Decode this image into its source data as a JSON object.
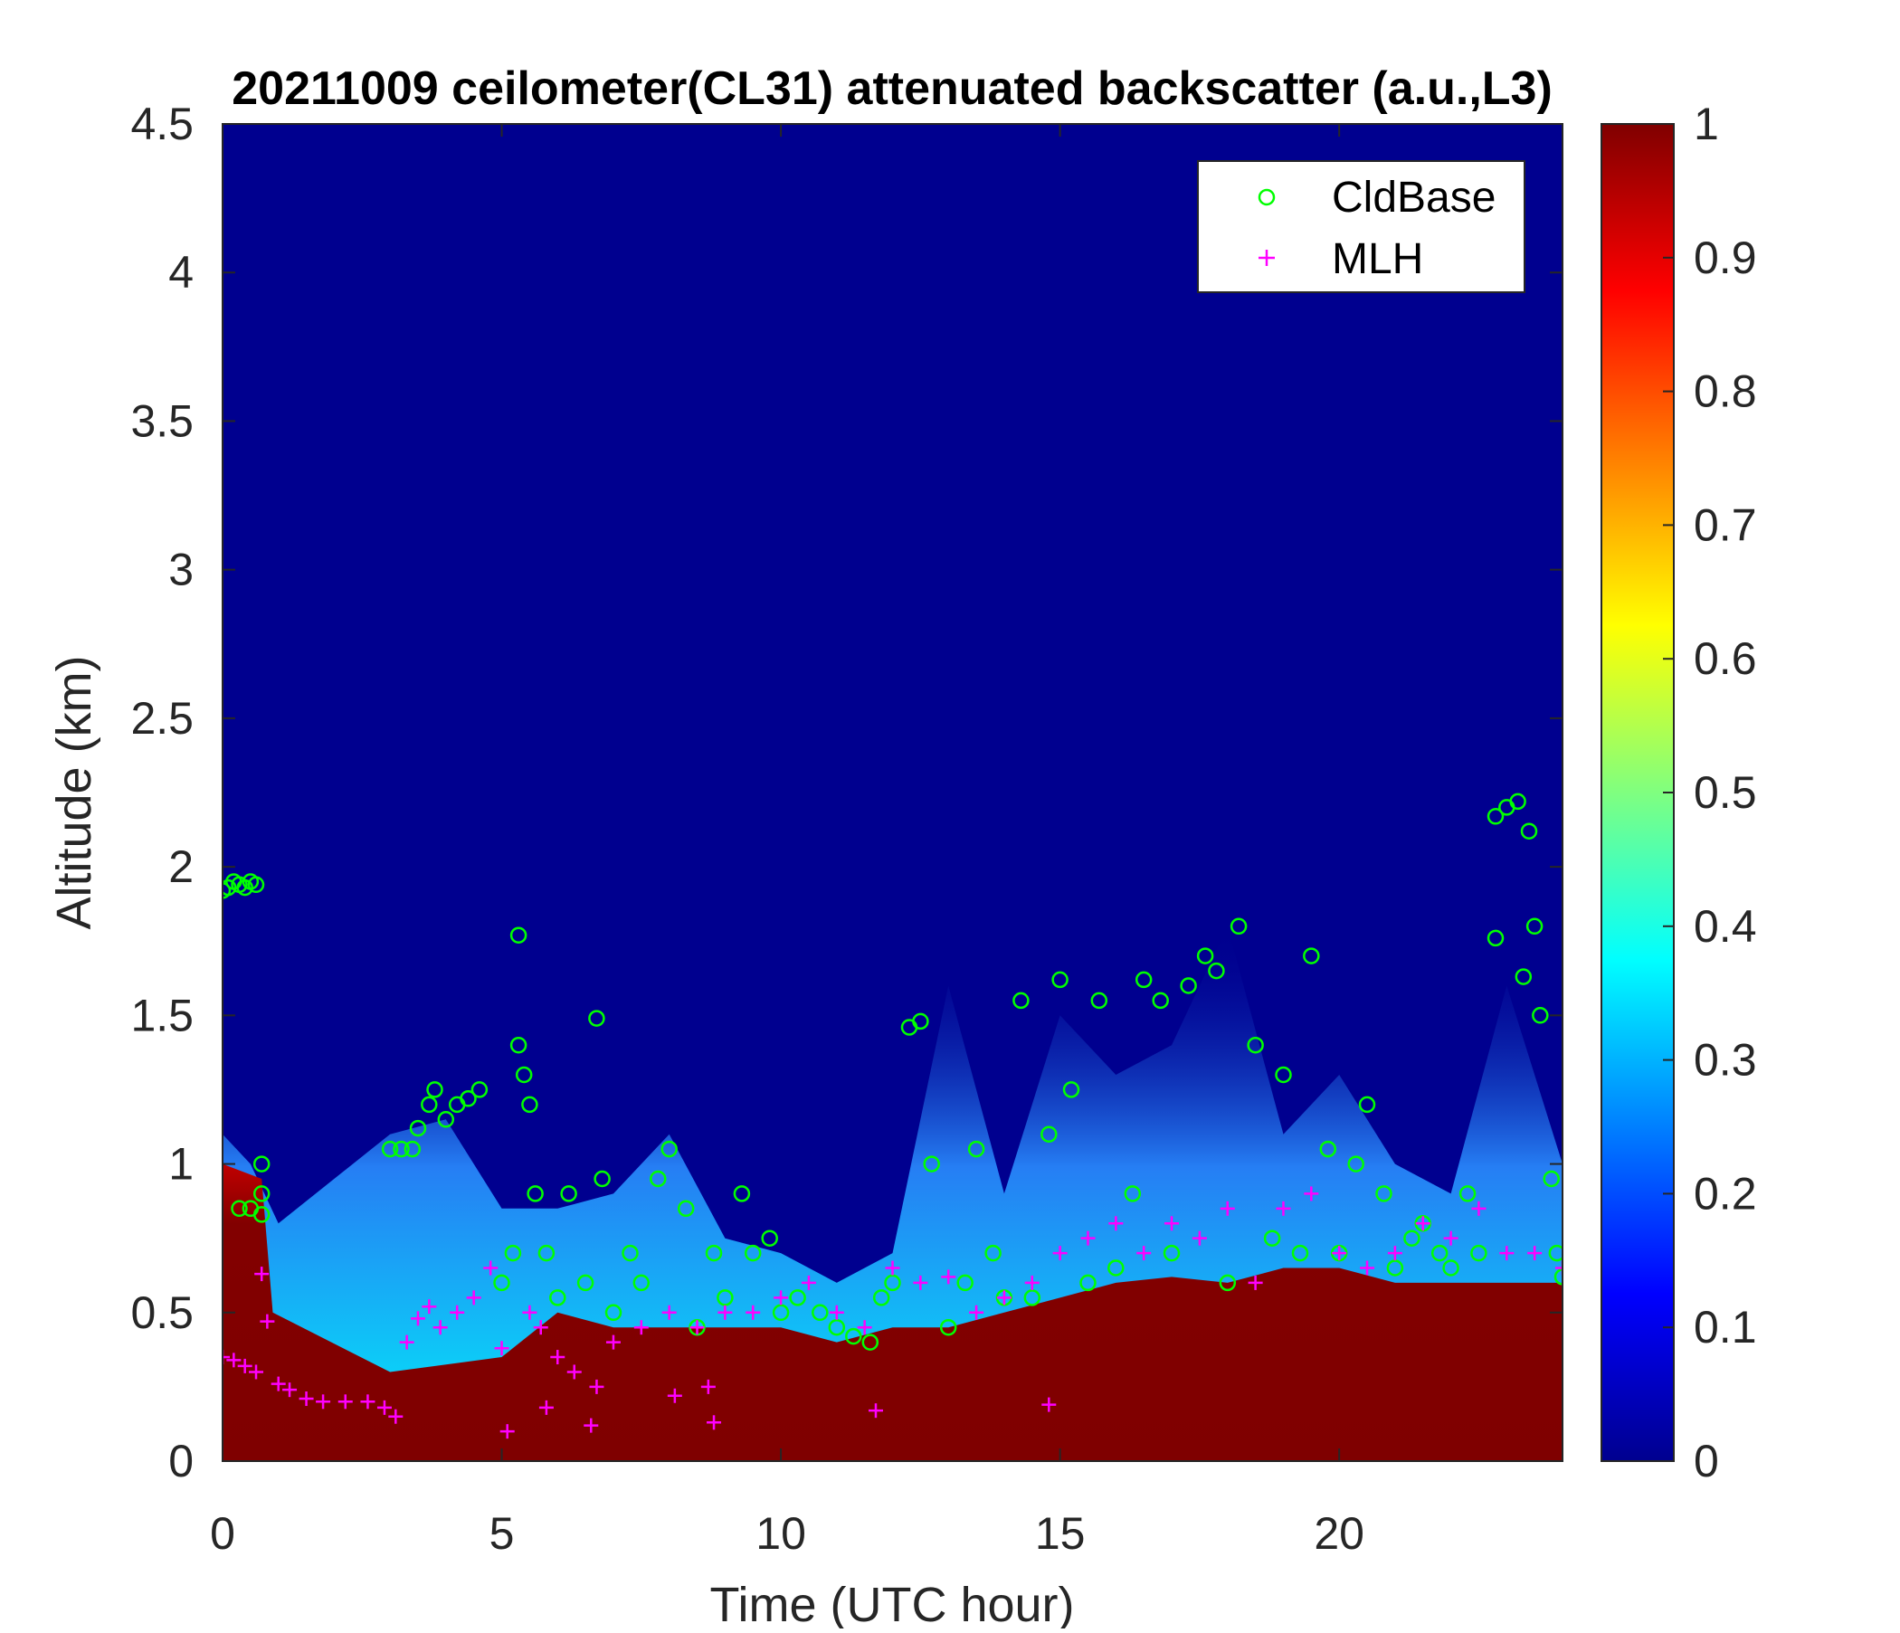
{
  "chart_data": {
    "type": "heatmap",
    "title": "20211009 ceilometer(CL31) attenuated backscatter (a.u.,L3)",
    "xlabel": "Time (UTC hour)",
    "ylabel": "Altitude (km)",
    "xlim": [
      0,
      24
    ],
    "ylim": [
      0,
      4.5
    ],
    "xticks": [
      0,
      5,
      10,
      15,
      20
    ],
    "yticks": [
      0,
      0.5,
      1,
      1.5,
      2,
      2.5,
      3,
      3.5,
      4,
      4.5
    ],
    "colorbar": {
      "colormap": "jet",
      "range": [
        0,
        1
      ],
      "ticks": [
        0,
        0.1,
        0.2,
        0.3,
        0.4,
        0.5,
        0.6,
        0.7,
        0.8,
        0.9,
        1
      ]
    },
    "background_value": 0,
    "legend": {
      "position": "top-right",
      "entries": [
        {
          "name": "CldBase",
          "marker": "circle",
          "color": "#00ff00"
        },
        {
          "name": "MLH",
          "marker": "plus",
          "color": "#ff00ff"
        }
      ]
    },
    "intensity_profile_top_km": [
      [
        0,
        1.1
      ],
      [
        0.5,
        1.0
      ],
      [
        1,
        0.8
      ],
      [
        3,
        1.1
      ],
      [
        4,
        1.15
      ],
      [
        5,
        0.85
      ],
      [
        6,
        0.85
      ],
      [
        7,
        0.9
      ],
      [
        8,
        1.1
      ],
      [
        9,
        0.75
      ],
      [
        10,
        0.7
      ],
      [
        11,
        0.6
      ],
      [
        12,
        0.7
      ],
      [
        13,
        1.6
      ],
      [
        14,
        0.9
      ],
      [
        15,
        1.5
      ],
      [
        16,
        1.3
      ],
      [
        17,
        1.4
      ],
      [
        18,
        1.8
      ],
      [
        19,
        1.1
      ],
      [
        20,
        1.3
      ],
      [
        21,
        1.0
      ],
      [
        22,
        0.9
      ],
      [
        23,
        1.6
      ],
      [
        24,
        1.0
      ]
    ],
    "saturated_layer_top_km": [
      [
        0,
        1.0
      ],
      [
        0.7,
        0.95
      ],
      [
        0.9,
        0.5
      ],
      [
        3,
        0.3
      ],
      [
        5,
        0.35
      ],
      [
        6,
        0.5
      ],
      [
        7,
        0.45
      ],
      [
        9,
        0.45
      ],
      [
        10,
        0.45
      ],
      [
        11,
        0.4
      ],
      [
        12,
        0.45
      ],
      [
        13,
        0.45
      ],
      [
        14,
        0.5
      ],
      [
        15,
        0.55
      ],
      [
        16,
        0.6
      ],
      [
        17,
        0.62
      ],
      [
        18,
        0.6
      ],
      [
        19,
        0.65
      ],
      [
        20,
        0.65
      ],
      [
        21,
        0.6
      ],
      [
        22,
        0.6
      ],
      [
        23,
        0.6
      ],
      [
        24,
        0.6
      ]
    ],
    "series": [
      {
        "name": "CldBase",
        "points": [
          [
            0.0,
            1.92
          ],
          [
            0.1,
            1.93
          ],
          [
            0.2,
            1.95
          ],
          [
            0.3,
            1.94
          ],
          [
            0.4,
            1.93
          ],
          [
            0.5,
            1.95
          ],
          [
            0.6,
            1.94
          ],
          [
            0.3,
            0.85
          ],
          [
            0.5,
            0.85
          ],
          [
            0.7,
            0.83
          ],
          [
            0.7,
            0.9
          ],
          [
            0.7,
            1.0
          ],
          [
            3.0,
            1.05
          ],
          [
            3.2,
            1.05
          ],
          [
            3.4,
            1.05
          ],
          [
            3.5,
            1.12
          ],
          [
            3.7,
            1.2
          ],
          [
            3.8,
            1.25
          ],
          [
            4.0,
            1.15
          ],
          [
            4.2,
            1.2
          ],
          [
            4.4,
            1.22
          ],
          [
            4.6,
            1.25
          ],
          [
            5.0,
            0.6
          ],
          [
            5.2,
            0.7
          ],
          [
            5.3,
            1.4
          ],
          [
            5.3,
            1.77
          ],
          [
            5.4,
            1.3
          ],
          [
            5.5,
            1.2
          ],
          [
            5.6,
            0.9
          ],
          [
            5.8,
            0.7
          ],
          [
            6.0,
            0.55
          ],
          [
            6.2,
            0.9
          ],
          [
            6.5,
            0.6
          ],
          [
            6.7,
            1.49
          ],
          [
            6.8,
            0.95
          ],
          [
            7.0,
            0.5
          ],
          [
            7.3,
            0.7
          ],
          [
            7.5,
            0.6
          ],
          [
            7.8,
            0.95
          ],
          [
            8.0,
            1.05
          ],
          [
            8.3,
            0.85
          ],
          [
            8.5,
            0.45
          ],
          [
            8.8,
            0.7
          ],
          [
            9.0,
            0.55
          ],
          [
            9.3,
            0.9
          ],
          [
            9.5,
            0.7
          ],
          [
            9.8,
            0.75
          ],
          [
            10.0,
            0.5
          ],
          [
            10.3,
            0.55
          ],
          [
            10.7,
            0.5
          ],
          [
            11.0,
            0.45
          ],
          [
            11.3,
            0.42
          ],
          [
            11.6,
            0.4
          ],
          [
            11.8,
            0.55
          ],
          [
            12.0,
            0.6
          ],
          [
            12.3,
            1.46
          ],
          [
            12.5,
            1.48
          ],
          [
            12.7,
            1.0
          ],
          [
            13.0,
            0.45
          ],
          [
            13.3,
            0.6
          ],
          [
            13.5,
            1.05
          ],
          [
            13.8,
            0.7
          ],
          [
            14.0,
            0.55
          ],
          [
            14.3,
            1.55
          ],
          [
            14.5,
            0.55
          ],
          [
            14.8,
            1.1
          ],
          [
            15.0,
            1.62
          ],
          [
            15.2,
            1.25
          ],
          [
            15.5,
            0.6
          ],
          [
            15.7,
            1.55
          ],
          [
            16.0,
            0.65
          ],
          [
            16.3,
            0.9
          ],
          [
            16.5,
            1.62
          ],
          [
            16.8,
            1.55
          ],
          [
            17.0,
            0.7
          ],
          [
            17.3,
            1.6
          ],
          [
            17.6,
            1.7
          ],
          [
            17.8,
            1.65
          ],
          [
            18.0,
            0.6
          ],
          [
            18.2,
            1.8
          ],
          [
            18.5,
            1.4
          ],
          [
            18.8,
            0.75
          ],
          [
            19.0,
            1.3
          ],
          [
            19.3,
            0.7
          ],
          [
            19.5,
            1.7
          ],
          [
            19.8,
            1.05
          ],
          [
            20.0,
            0.7
          ],
          [
            20.3,
            1.0
          ],
          [
            20.5,
            1.2
          ],
          [
            20.8,
            0.9
          ],
          [
            21.0,
            0.65
          ],
          [
            21.3,
            0.75
          ],
          [
            21.5,
            0.8
          ],
          [
            21.8,
            0.7
          ],
          [
            22.0,
            0.65
          ],
          [
            22.3,
            0.9
          ],
          [
            22.5,
            0.7
          ],
          [
            22.8,
            2.17
          ],
          [
            22.8,
            1.76
          ],
          [
            23.0,
            2.2
          ],
          [
            23.2,
            2.22
          ],
          [
            23.3,
            1.63
          ],
          [
            23.4,
            2.12
          ],
          [
            23.5,
            1.8
          ],
          [
            23.6,
            1.5
          ],
          [
            23.8,
            0.95
          ],
          [
            23.9,
            0.7
          ],
          [
            24.0,
            0.62
          ]
        ]
      },
      {
        "name": "MLH",
        "points": [
          [
            0.0,
            0.35
          ],
          [
            0.2,
            0.34
          ],
          [
            0.4,
            0.32
          ],
          [
            0.6,
            0.3
          ],
          [
            0.7,
            0.63
          ],
          [
            0.8,
            0.47
          ],
          [
            1.0,
            0.26
          ],
          [
            1.2,
            0.24
          ],
          [
            1.5,
            0.21
          ],
          [
            1.8,
            0.2
          ],
          [
            2.2,
            0.2
          ],
          [
            2.6,
            0.2
          ],
          [
            2.9,
            0.18
          ],
          [
            3.1,
            0.15
          ],
          [
            3.3,
            0.4
          ],
          [
            3.5,
            0.48
          ],
          [
            3.7,
            0.52
          ],
          [
            3.9,
            0.45
          ],
          [
            4.2,
            0.5
          ],
          [
            4.5,
            0.55
          ],
          [
            4.8,
            0.65
          ],
          [
            5.0,
            0.38
          ],
          [
            5.1,
            0.1
          ],
          [
            5.5,
            0.5
          ],
          [
            5.7,
            0.45
          ],
          [
            5.8,
            0.18
          ],
          [
            6.0,
            0.35
          ],
          [
            6.3,
            0.3
          ],
          [
            6.6,
            0.12
          ],
          [
            6.7,
            0.25
          ],
          [
            7.0,
            0.4
          ],
          [
            7.5,
            0.45
          ],
          [
            8.0,
            0.5
          ],
          [
            8.1,
            0.22
          ],
          [
            8.5,
            0.45
          ],
          [
            8.7,
            0.25
          ],
          [
            8.8,
            0.13
          ],
          [
            9.0,
            0.5
          ],
          [
            9.5,
            0.5
          ],
          [
            10.0,
            0.55
          ],
          [
            10.5,
            0.6
          ],
          [
            11.0,
            0.5
          ],
          [
            11.5,
            0.45
          ],
          [
            11.7,
            0.17
          ],
          [
            12.0,
            0.65
          ],
          [
            12.5,
            0.6
          ],
          [
            13.0,
            0.62
          ],
          [
            13.5,
            0.5
          ],
          [
            14.0,
            0.55
          ],
          [
            14.5,
            0.6
          ],
          [
            14.8,
            0.19
          ],
          [
            15.0,
            0.7
          ],
          [
            15.5,
            0.75
          ],
          [
            16.0,
            0.8
          ],
          [
            16.5,
            0.7
          ],
          [
            17.0,
            0.8
          ],
          [
            17.5,
            0.75
          ],
          [
            18.0,
            0.85
          ],
          [
            18.5,
            0.6
          ],
          [
            19.0,
            0.85
          ],
          [
            19.5,
            0.9
          ],
          [
            20.0,
            0.7
          ],
          [
            20.5,
            0.65
          ],
          [
            21.0,
            0.7
          ],
          [
            21.5,
            0.8
          ],
          [
            22.0,
            0.75
          ],
          [
            22.5,
            0.85
          ],
          [
            23.0,
            0.7
          ],
          [
            23.5,
            0.7
          ],
          [
            24.0,
            0.65
          ]
        ]
      }
    ]
  }
}
